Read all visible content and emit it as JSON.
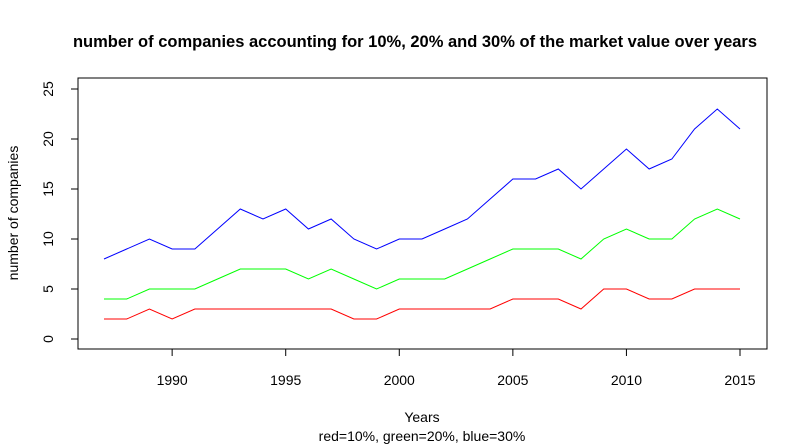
{
  "chart_data": {
    "type": "line",
    "title": "number of companies accounting for 10%, 20% and 30% of the market value over years",
    "xlabel": "Years",
    "xlabel_sub": "red=10%, green=20%, blue=30%",
    "ylabel": "number of companies",
    "xlim": [
      1987,
      2015
    ],
    "ylim": [
      0,
      25
    ],
    "x_ticks": [
      1990,
      1995,
      2000,
      2005,
      2010,
      2015
    ],
    "y_ticks": [
      0,
      5,
      10,
      15,
      20,
      25
    ],
    "grid": false,
    "x": [
      1987,
      1988,
      1989,
      1990,
      1991,
      1992,
      1993,
      1994,
      1995,
      1996,
      1997,
      1998,
      1999,
      2000,
      2001,
      2002,
      2003,
      2004,
      2005,
      2006,
      2007,
      2008,
      2009,
      2010,
      2011,
      2012,
      2013,
      2014,
      2015
    ],
    "series": [
      {
        "color": "#0000FF",
        "values": [
          8,
          9,
          10,
          9,
          9,
          11,
          13,
          12,
          13,
          11,
          12,
          10,
          9,
          10,
          10,
          11,
          12,
          14,
          16,
          16,
          17,
          15,
          17,
          19,
          17,
          18,
          21,
          23,
          21
        ]
      },
      {
        "color": "#00FF00",
        "values": [
          4,
          4,
          5,
          5,
          5,
          6,
          7,
          7,
          7,
          6,
          7,
          6,
          5,
          6,
          6,
          6,
          7,
          8,
          9,
          9,
          9,
          8,
          10,
          11,
          10,
          10,
          12,
          13,
          12
        ]
      },
      {
        "color": "#FF0000",
        "values": [
          2,
          2,
          3,
          2,
          3,
          3,
          3,
          3,
          3,
          3,
          3,
          2,
          2,
          3,
          3,
          3,
          3,
          3,
          4,
          4,
          4,
          3,
          5,
          5,
          4,
          4,
          5,
          5,
          5
        ]
      }
    ]
  }
}
